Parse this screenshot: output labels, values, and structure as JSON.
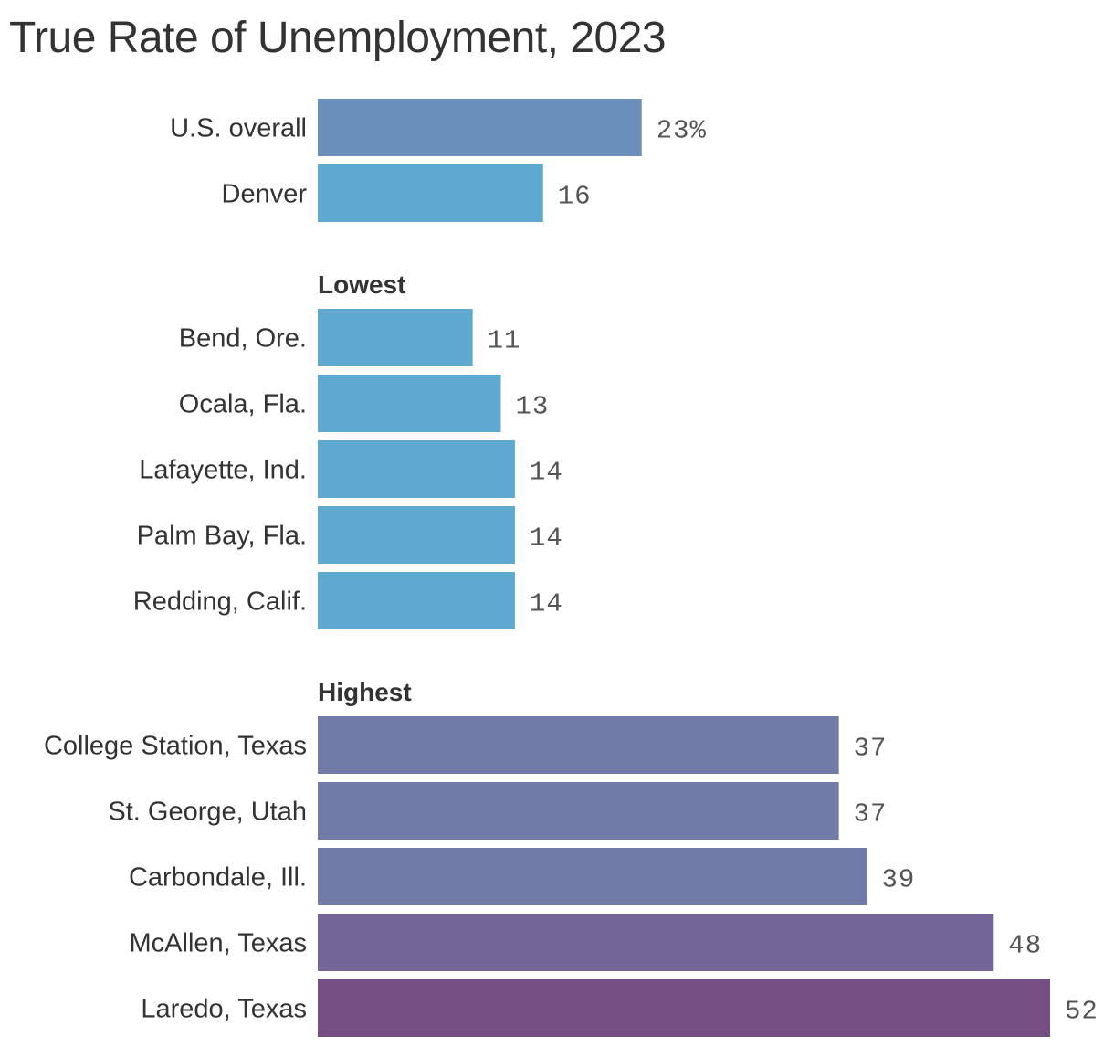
{
  "chart_data": {
    "type": "bar",
    "orientation": "horizontal",
    "title": "True Rate of Unemployment, 2023",
    "xlim": [
      0,
      52
    ],
    "grid": false,
    "legend": "none",
    "groups": [
      {
        "label": "",
        "bars": [
          {
            "category": "U.S. overall",
            "value": 23,
            "value_label": "23%",
            "color": "#6a8fba"
          },
          {
            "category": "Denver",
            "value": 16,
            "value_label": "16",
            "color": "#5fa8d0"
          }
        ]
      },
      {
        "label": "Lowest",
        "bars": [
          {
            "category": "Bend, Ore.",
            "value": 11,
            "value_label": "11",
            "color": "#5fa8d0"
          },
          {
            "category": "Ocala, Fla.",
            "value": 13,
            "value_label": "13",
            "color": "#5fa8d0"
          },
          {
            "category": "Lafayette, Ind.",
            "value": 14,
            "value_label": "14",
            "color": "#5fa8d0"
          },
          {
            "category": "Palm Bay, Fla.",
            "value": 14,
            "value_label": "14",
            "color": "#5fa8d0"
          },
          {
            "category": "Redding, Calif.",
            "value": 14,
            "value_label": "14",
            "color": "#5fa8d0"
          }
        ]
      },
      {
        "label": "Highest",
        "bars": [
          {
            "category": "College Station, Texas",
            "value": 37,
            "value_label": "37",
            "color": "#707ba8"
          },
          {
            "category": "St. George, Utah",
            "value": 37,
            "value_label": "37",
            "color": "#707ba8"
          },
          {
            "category": "Carbondale, Ill.",
            "value": 39,
            "value_label": "39",
            "color": "#707ba8"
          },
          {
            "category": "McAllen, Texas",
            "value": 48,
            "value_label": "48",
            "color": "#736597"
          },
          {
            "category": "Laredo, Texas",
            "value": 52,
            "value_label": "52",
            "color": "#754f83"
          }
        ]
      }
    ]
  }
}
